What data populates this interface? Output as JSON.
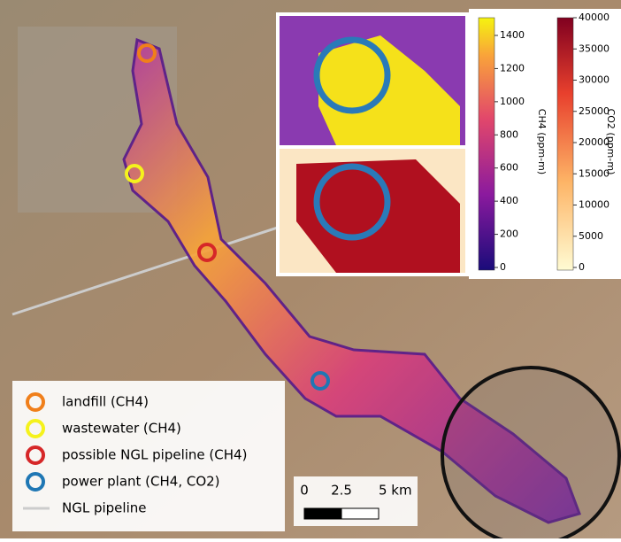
{
  "legend": {
    "items": [
      {
        "label": "landfill (CH4)",
        "color": "#f07f1a",
        "kind": "circle"
      },
      {
        "label": "wastewater (CH4)",
        "color": "#f5f21c",
        "kind": "circle"
      },
      {
        "label": "possible NGL pipeline (CH4)",
        "color": "#d62728",
        "kind": "circle"
      },
      {
        "label": "power plant (CH4, CO2)",
        "color": "#1f77b4",
        "kind": "circle"
      },
      {
        "label": "NGL pipeline",
        "color": "#cccccc",
        "kind": "line"
      }
    ]
  },
  "scale_bar": {
    "labels": [
      "0",
      "2.5",
      "5 km"
    ]
  },
  "colorbars": [
    {
      "label": "CH4 (ppm-m)",
      "ticks": [
        0,
        200,
        400,
        600,
        800,
        1000,
        1200,
        1400
      ]
    },
    {
      "label": "CO2 (ppm-m)",
      "ticks": [
        0,
        5000,
        10000,
        15000,
        20000,
        25000,
        30000,
        35000,
        40000
      ]
    }
  ]
}
